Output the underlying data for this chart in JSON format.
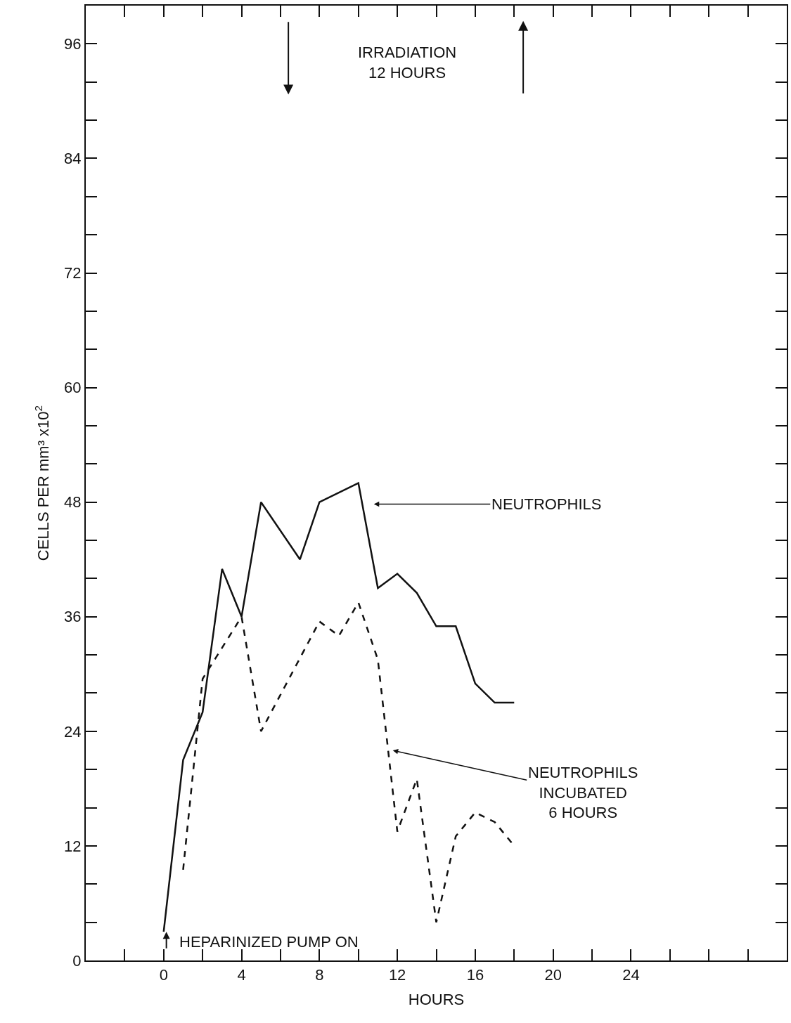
{
  "chart_data": {
    "type": "line",
    "xlabel": "HOURS",
    "ylabel": "CELLS PER mm³ x10$^{2}$",
    "xlim": [
      -4,
      32
    ],
    "ylim": [
      0,
      100
    ],
    "xticks": [
      {
        "value": -4,
        "label": null
      },
      {
        "value": -2,
        "label": null
      },
      0,
      {
        "value": 2,
        "label": null
      },
      4,
      {
        "value": 6,
        "label": null
      },
      8,
      {
        "value": 10,
        "label": null
      },
      12,
      {
        "value": 14,
        "label": null
      },
      16,
      {
        "value": 18,
        "label": null
      },
      20,
      {
        "value": 22,
        "label": null
      },
      24,
      {
        "value": 26,
        "label": null
      },
      {
        "value": 28,
        "label": null
      },
      {
        "value": 30,
        "label": null
      }
    ],
    "yticks": [
      0,
      {
        "value": 4,
        "label": null
      },
      {
        "value": 8,
        "label": null
      },
      12,
      {
        "value": 16,
        "label": null
      },
      {
        "value": 20,
        "label": null
      },
      24,
      {
        "value": 28,
        "label": null
      },
      {
        "value": 32,
        "label": null
      },
      36,
      {
        "value": 40,
        "label": null
      },
      {
        "value": 44,
        "label": null
      },
      48,
      {
        "value": 52,
        "label": null
      },
      {
        "value": 56,
        "label": null
      },
      60,
      {
        "value": 64,
        "label": null
      },
      {
        "value": 68,
        "label": null
      },
      72,
      {
        "value": 76,
        "label": null
      },
      {
        "value": 80,
        "label": null
      },
      84,
      {
        "value": 88,
        "label": null
      },
      {
        "value": 92,
        "label": null
      },
      96
    ],
    "marker": "none",
    "series": [
      {
        "color": "#111111",
        "line_style": "solid",
        "x": [
          0,
          1,
          2,
          3,
          4,
          5,
          7,
          8,
          10,
          11,
          12,
          13,
          14,
          15,
          16,
          17,
          18
        ],
        "values": [
          3,
          21,
          26,
          41,
          36,
          48,
          42,
          48,
          50,
          39,
          40.5,
          38.5,
          35,
          35,
          29,
          27,
          27
        ]
      },
      {
        "color": "#111111",
        "line_style": "dashed",
        "x": [
          1,
          2,
          4,
          5,
          8,
          9,
          10,
          11,
          12,
          13,
          14,
          15,
          16,
          17,
          18
        ],
        "values": [
          9.5,
          29.5,
          36,
          24,
          35.5,
          34,
          37.5,
          31.5,
          13.5,
          19,
          4,
          13,
          15.5,
          14.5,
          12
        ]
      }
    ],
    "annotations": [
      "IRRADIATION\n12 HOURS",
      "NEUTROPHILS",
      "NEUTROPHILS\nINCUBATED\n6 HOURS",
      "HEPARINIZED PUMP ON"
    ]
  }
}
